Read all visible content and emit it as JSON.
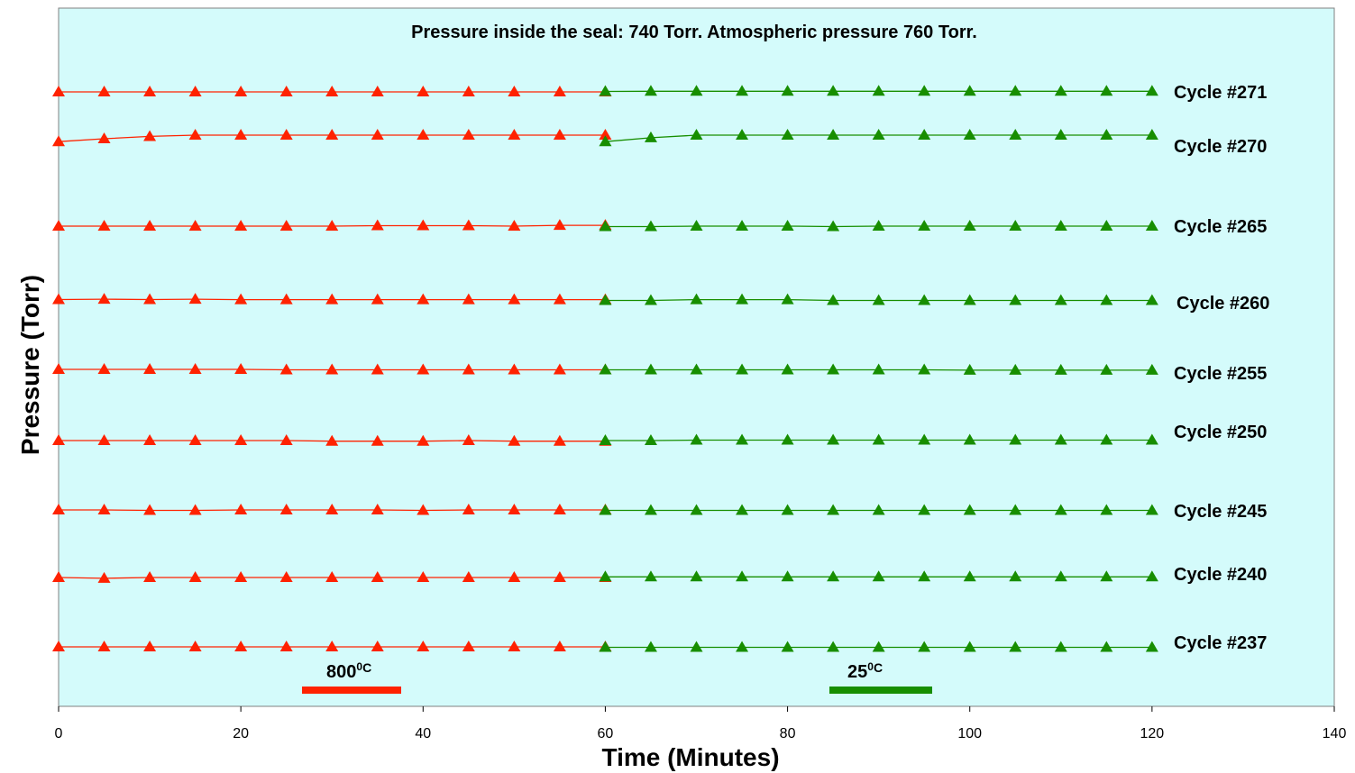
{
  "chart_data": {
    "type": "line",
    "title": "Pressure inside the seal: 740 Torr. Atmospheric pressure 760 Torr.",
    "xlabel": "Time (Minutes)",
    "ylabel": "Pressure (Torr)",
    "xlim": [
      0,
      140
    ],
    "x_ticks": [
      "0",
      "20",
      "40",
      "60",
      "80",
      "100",
      "120",
      "140"
    ],
    "y_ticks_shown": false,
    "grid": false,
    "plot_background": "#d4fbfb",
    "colors": {
      "hot": "#ff2200",
      "cold": "#178e00"
    },
    "phase_legend": [
      {
        "label": "800",
        "superscript": "0",
        "unit": "C",
        "color": "#ff2200"
      },
      {
        "label": "25",
        "superscript": "0",
        "unit": "C",
        "color": "#178e00"
      }
    ],
    "series": [
      {
        "name": "Cycle #271",
        "hot": {
          "x": [
            0,
            5,
            10,
            15,
            20,
            25,
            30,
            35,
            40,
            45,
            50,
            55,
            60
          ],
          "y": [
            0,
            0,
            0,
            0,
            0,
            0,
            0,
            0,
            0,
            0,
            0,
            0,
            0
          ]
        },
        "cold": {
          "x": [
            60,
            65,
            70,
            75,
            80,
            85,
            90,
            95,
            100,
            105,
            110,
            115,
            120
          ],
          "y": [
            0.3,
            0.4,
            0.4,
            0.4,
            0.4,
            0.4,
            0.4,
            0.4,
            0.4,
            0.4,
            0.4,
            0.4,
            0.4
          ]
        }
      },
      {
        "name": "Cycle #270",
        "hot": {
          "x": [
            0,
            5,
            10,
            15,
            20,
            25,
            30,
            35,
            40,
            45,
            50,
            55,
            60
          ],
          "y": [
            -4,
            -2.2,
            -0.8,
            0,
            0,
            0,
            0,
            0,
            0,
            0,
            0,
            0,
            0
          ]
        },
        "cold": {
          "x": [
            60,
            65,
            70,
            75,
            80,
            85,
            90,
            95,
            100,
            105,
            110,
            115,
            120
          ],
          "y": [
            -4,
            -1.6,
            0,
            0,
            0,
            0,
            0,
            0,
            0,
            0,
            0,
            0,
            0
          ]
        }
      },
      {
        "name": "Cycle #265",
        "hot": {
          "x": [
            0,
            5,
            10,
            15,
            20,
            25,
            30,
            35,
            40,
            45,
            50,
            55,
            60
          ],
          "y": [
            0,
            0,
            0,
            0,
            0,
            0,
            0,
            0.3,
            0.3,
            0.3,
            0,
            0.5,
            0.5
          ]
        },
        "cold": {
          "x": [
            60,
            65,
            70,
            75,
            80,
            85,
            90,
            95,
            100,
            105,
            110,
            115,
            120
          ],
          "y": [
            -0.3,
            -0.3,
            0,
            0,
            0,
            -0.3,
            0,
            0,
            0,
            0,
            0,
            0,
            0
          ]
        }
      },
      {
        "name": "Cycle #260",
        "hot": {
          "x": [
            0,
            5,
            10,
            15,
            20,
            25,
            30,
            35,
            40,
            45,
            50,
            55,
            60
          ],
          "y": [
            0.3,
            0.5,
            0.3,
            0.5,
            0.2,
            0.2,
            0.2,
            0.2,
            0.2,
            0.2,
            0.2,
            0.2,
            0.2
          ]
        },
        "cold": {
          "x": [
            60,
            65,
            70,
            75,
            80,
            85,
            90,
            95,
            100,
            105,
            110,
            115,
            120
          ],
          "y": [
            -0.3,
            -0.3,
            0.2,
            0.2,
            0.2,
            -0.3,
            -0.3,
            -0.3,
            -0.3,
            -0.3,
            -0.3,
            -0.3,
            -0.3
          ]
        }
      },
      {
        "name": "Cycle #255",
        "hot": {
          "x": [
            0,
            5,
            10,
            15,
            20,
            25,
            30,
            35,
            40,
            45,
            50,
            55,
            60
          ],
          "y": [
            0,
            0,
            0,
            0,
            0,
            -0.3,
            -0.3,
            -0.3,
            -0.3,
            -0.3,
            -0.3,
            -0.3,
            -0.3
          ]
        },
        "cold": {
          "x": [
            60,
            65,
            70,
            75,
            80,
            85,
            90,
            95,
            100,
            105,
            110,
            115,
            120
          ],
          "y": [
            -0.3,
            -0.3,
            -0.3,
            -0.3,
            -0.3,
            -0.3,
            -0.3,
            -0.3,
            -0.5,
            -0.5,
            -0.5,
            -0.5,
            -0.5
          ]
        }
      },
      {
        "name": "Cycle #250",
        "hot": {
          "x": [
            0,
            5,
            10,
            15,
            20,
            25,
            30,
            35,
            40,
            45,
            50,
            55,
            60
          ],
          "y": [
            0,
            0,
            0,
            0,
            0,
            0,
            -0.4,
            -0.4,
            -0.4,
            0,
            -0.4,
            -0.4,
            -0.4
          ]
        },
        "cold": {
          "x": [
            60,
            65,
            70,
            75,
            80,
            85,
            90,
            95,
            100,
            105,
            110,
            115,
            120
          ],
          "y": [
            0,
            0,
            0.3,
            0.3,
            0.3,
            0.3,
            0.3,
            0.3,
            0.3,
            0.3,
            0.3,
            0.3,
            0.3
          ]
        }
      },
      {
        "name": "Cycle #245",
        "hot": {
          "x": [
            0,
            5,
            10,
            15,
            20,
            25,
            30,
            35,
            40,
            45,
            50,
            55,
            60
          ],
          "y": [
            0,
            0,
            -0.3,
            -0.3,
            0,
            0,
            0,
            0,
            -0.3,
            0,
            0,
            0,
            0
          ]
        },
        "cold": {
          "x": [
            60,
            65,
            70,
            75,
            80,
            85,
            90,
            95,
            100,
            105,
            110,
            115,
            120
          ],
          "y": [
            -0.3,
            -0.3,
            -0.3,
            -0.3,
            -0.3,
            -0.3,
            -0.3,
            -0.3,
            -0.3,
            -0.3,
            -0.3,
            -0.3,
            -0.3
          ]
        }
      },
      {
        "name": "Cycle #240",
        "hot": {
          "x": [
            0,
            5,
            10,
            15,
            20,
            25,
            30,
            35,
            40,
            45,
            50,
            55,
            60
          ],
          "y": [
            0,
            -0.5,
            0,
            0,
            0,
            0,
            0,
            0,
            0,
            0,
            0,
            0,
            0
          ]
        },
        "cold": {
          "x": [
            60,
            65,
            70,
            75,
            80,
            85,
            90,
            95,
            100,
            105,
            110,
            115,
            120
          ],
          "y": [
            0.4,
            0.4,
            0.4,
            0.4,
            0.4,
            0.4,
            0.4,
            0.4,
            0.4,
            0.4,
            0.4,
            0.4,
            0.4
          ]
        }
      },
      {
        "name": "Cycle #237",
        "hot": {
          "x": [
            0,
            5,
            10,
            15,
            20,
            25,
            30,
            35,
            40,
            45,
            50,
            55,
            60
          ],
          "y": [
            0,
            0,
            0,
            0,
            0,
            0,
            0,
            0,
            0,
            0,
            0,
            0,
            0
          ]
        },
        "cold": {
          "x": [
            60,
            65,
            70,
            75,
            80,
            85,
            90,
            95,
            100,
            105,
            110,
            115,
            120
          ],
          "y": [
            -0.3,
            -0.3,
            -0.3,
            -0.3,
            -0.3,
            -0.3,
            -0.3,
            -0.3,
            -0.3,
            -0.3,
            -0.3,
            -0.3,
            -0.3
          ]
        }
      }
    ]
  }
}
